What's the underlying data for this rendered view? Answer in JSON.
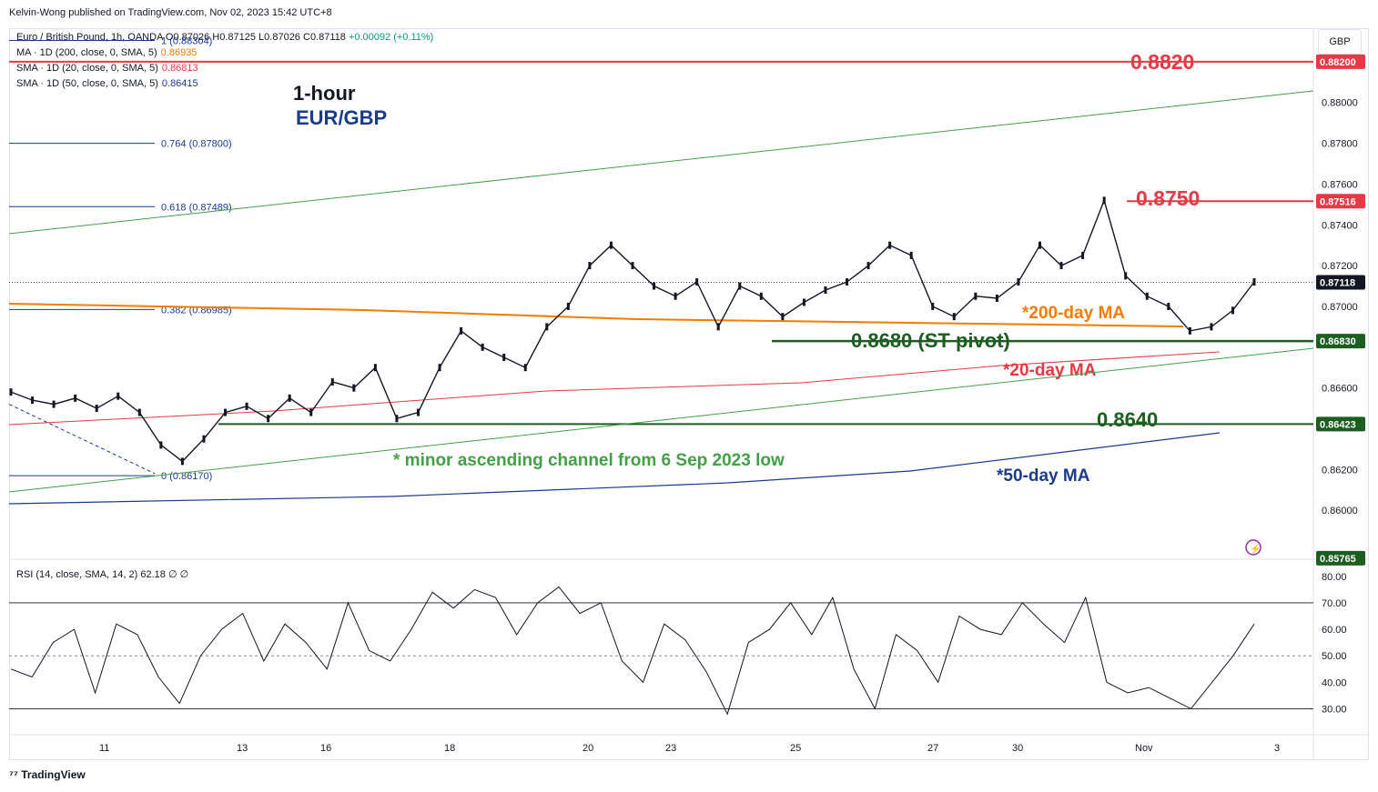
{
  "header": {
    "publisher": "Kelvin-Wong published on TradingView.com, Nov 02, 2023 15:42 UTC+8"
  },
  "symbol_line": {
    "name": "Euro / British Pound, 1h, OANDA",
    "o": "O0.87026",
    "h": "H0.87125",
    "l": "L0.87026",
    "c": "C0.87118",
    "chg": "+0.00092 (+0.11%)"
  },
  "indicators": [
    {
      "label": "MA · 1D (200, close, 0, SMA, 5)",
      "value": "0.86935",
      "color": "#f57c00"
    },
    {
      "label": "SMA · 1D (20, close, 0, SMA, 5)",
      "value": "0.86813",
      "color": "#e53945"
    },
    {
      "label": "SMA · 1D (50, close, 0, SMA, 5)",
      "value": "0.86415",
      "color": "#1a3b8c"
    }
  ],
  "currency_button": "GBP",
  "titles": {
    "line1": "1-hour",
    "line2": "EUR/GBP"
  },
  "annotations": {
    "r2": "0.8820",
    "r1": "0.8750",
    "pivot": "0.8680 (ST pivot)",
    "s1": "0.8640",
    "ma200": "*200-day MA",
    "ma20": "*20-day MA",
    "ma50": "*50-day MA",
    "channel": "* minor ascending channel from 6 Sep 2023 low"
  },
  "fib_labels": [
    "1 (0.88304)",
    "0.764 (0.87800)",
    "0.618 (0.87489)",
    "0.382 (0.86985)",
    "0 (0.86170)"
  ],
  "price_axis": [
    "0.88000",
    "0.87800",
    "0.87600",
    "0.87400",
    "0.87200",
    "0.87000",
    "0.86600",
    "0.86200",
    "0.86000"
  ],
  "price_tags": [
    {
      "text": "0.88200",
      "price": 0.882,
      "color": "#e53945"
    },
    {
      "text": "0.87516",
      "price": 0.87516,
      "color": "#e53945"
    },
    {
      "text": "0.87118",
      "price": 0.87118,
      "color": "#131722"
    },
    {
      "text": "0.86830",
      "price": 0.8683,
      "color": "#1b5e20"
    },
    {
      "text": "0.86423",
      "price": 0.86423,
      "color": "#1b5e20"
    },
    {
      "text": "0.85765",
      "price": 0.85765,
      "color": "#1b5e20"
    }
  ],
  "time_axis": [
    "11",
    "13",
    "16",
    "18",
    "20",
    "23",
    "25",
    "27",
    "30",
    "Nov",
    "3"
  ],
  "rsi": {
    "label": "RSI (14, close, SMA, 14, 2)",
    "value": "62.18",
    "extra": "∅ ∅",
    "axis": [
      "80.00",
      "70.00",
      "60.00",
      "50.00",
      "40.00",
      "30.00"
    ]
  },
  "footer": "TradingView",
  "colors": {
    "red_level": "#e53945",
    "green_level": "#1b5e20",
    "ma200": "#f57c00",
    "ma20": "#e53945",
    "ma50": "#1a3b8c",
    "channel": "#43a047",
    "title_blue": "#1a3b8c"
  },
  "chart_data": {
    "type": "line",
    "title": "EUR/GBP",
    "x_ticks": [
      "11",
      "13",
      "16",
      "18",
      "20",
      "23",
      "25",
      "27",
      "30",
      "Nov",
      "3"
    ],
    "y_range": [
      0.8576,
      0.8836
    ],
    "close_path": [
      [
        0,
        0.8658
      ],
      [
        1,
        0.8654
      ],
      [
        2,
        0.8652
      ],
      [
        3,
        0.8655
      ],
      [
        4,
        0.865
      ],
      [
        5,
        0.8656
      ],
      [
        6,
        0.8648
      ],
      [
        7,
        0.8632
      ],
      [
        8,
        0.8624
      ],
      [
        9,
        0.8635
      ],
      [
        10,
        0.8648
      ],
      [
        11,
        0.8651
      ],
      [
        12,
        0.8645
      ],
      [
        13,
        0.8655
      ],
      [
        14,
        0.8648
      ],
      [
        15,
        0.8663
      ],
      [
        16,
        0.866
      ],
      [
        17,
        0.867
      ],
      [
        18,
        0.8645
      ],
      [
        19,
        0.8648
      ],
      [
        20,
        0.867
      ],
      [
        21,
        0.8688
      ],
      [
        22,
        0.868
      ],
      [
        23,
        0.8675
      ],
      [
        24,
        0.867
      ],
      [
        25,
        0.869
      ],
      [
        26,
        0.87
      ],
      [
        27,
        0.872
      ],
      [
        28,
        0.873
      ],
      [
        29,
        0.872
      ],
      [
        30,
        0.871
      ],
      [
        31,
        0.8705
      ],
      [
        32,
        0.8712
      ],
      [
        33,
        0.869
      ],
      [
        34,
        0.871
      ],
      [
        35,
        0.8705
      ],
      [
        36,
        0.8695
      ],
      [
        37,
        0.8702
      ],
      [
        38,
        0.8708
      ],
      [
        39,
        0.8712
      ],
      [
        40,
        0.872
      ],
      [
        41,
        0.873
      ],
      [
        42,
        0.8725
      ],
      [
        43,
        0.87
      ],
      [
        44,
        0.8695
      ],
      [
        45,
        0.8705
      ],
      [
        46,
        0.8704
      ],
      [
        47,
        0.8712
      ],
      [
        48,
        0.873
      ],
      [
        49,
        0.872
      ],
      [
        50,
        0.8725
      ],
      [
        51,
        0.8752
      ],
      [
        52,
        0.8715
      ],
      [
        53,
        0.8705
      ],
      [
        54,
        0.87
      ],
      [
        55,
        0.8688
      ],
      [
        56,
        0.869
      ],
      [
        57,
        0.8698
      ],
      [
        58,
        0.8712
      ]
    ],
    "levels": [
      {
        "name": "0.8820",
        "value": 0.882
      },
      {
        "name": "0.8750",
        "value": 0.8751
      },
      {
        "name": "0.8680 (ST pivot)",
        "value": 0.8683
      },
      {
        "name": "0.8640",
        "value": 0.86423
      }
    ],
    "rsi_series": [
      45,
      42,
      55,
      60,
      36,
      62,
      58,
      42,
      32,
      50,
      60,
      66,
      48,
      62,
      55,
      45,
      70,
      52,
      48,
      60,
      74,
      68,
      75,
      72,
      58,
      70,
      76,
      66,
      70,
      48,
      40,
      62,
      56,
      44,
      28,
      55,
      60,
      70,
      58,
      72,
      45,
      30,
      58,
      52,
      40,
      65,
      60,
      58,
      70,
      62,
      55,
      72,
      40,
      36,
      38,
      34,
      30,
      40,
      50,
      62
    ]
  }
}
